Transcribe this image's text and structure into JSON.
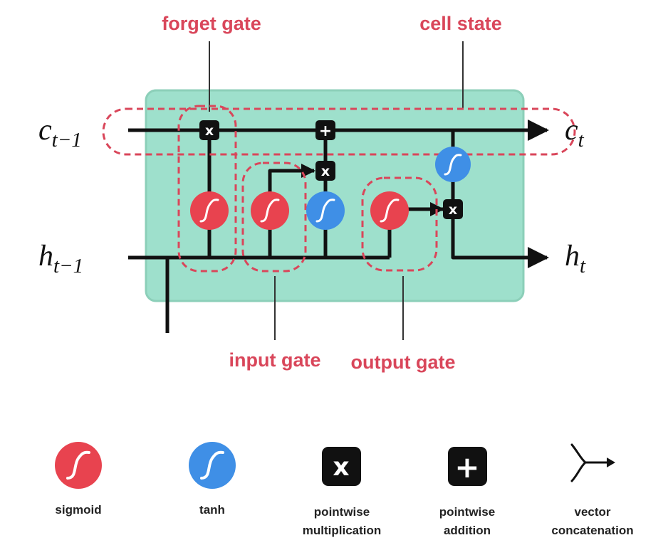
{
  "labels": {
    "forget_gate": "forget gate",
    "cell_state": "cell state",
    "input_gate": "input gate",
    "output_gate": "output gate"
  },
  "variables": {
    "c_prev": {
      "main": "c",
      "sub": "t−1"
    },
    "c_next": {
      "main": "c",
      "sub": "t"
    },
    "h_prev": {
      "main": "h",
      "sub": "t−1"
    },
    "h_next": {
      "main": "h",
      "sub": "t"
    }
  },
  "operators": {
    "multiply_symbol": "x",
    "add_symbol": "+"
  },
  "legend": {
    "sigmoid": {
      "lines": [
        "sigmoid"
      ]
    },
    "tanh": {
      "lines": [
        "tanh"
      ]
    },
    "multiply": {
      "lines": [
        "pointwise",
        "multiplication"
      ]
    },
    "add": {
      "lines": [
        "pointwise",
        "addition"
      ]
    },
    "concat": {
      "lines": [
        "vector",
        "concatenation"
      ]
    }
  },
  "colors": {
    "cell_fill": "#9ee0cc",
    "cell_border": "#8ccfb9",
    "sigmoid": "#e8434f",
    "tanh": "#3f8fe6",
    "operator": "#111111",
    "gate_outline": "#d9465a",
    "line": "#111111"
  },
  "icons": {
    "sigmoid": "sigmoid-curve-icon",
    "tanh": "tanh-curve-icon",
    "multiply": "multiply-icon",
    "add": "plus-icon",
    "concat": "fork-arrow-icon"
  }
}
